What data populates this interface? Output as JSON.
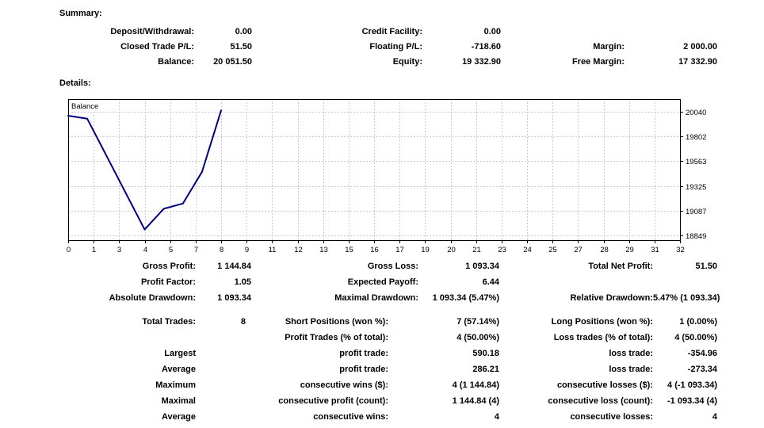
{
  "summary": {
    "title": "Summary:",
    "rows": [
      [
        "Deposit/Withdrawal:",
        "0.00",
        "Credit Facility:",
        "0.00",
        "",
        ""
      ],
      [
        "Closed Trade P/L:",
        "51.50",
        "Floating P/L:",
        "-718.60",
        "Margin:",
        "2 000.00"
      ],
      [
        "Balance:",
        "20 051.50",
        "Equity:",
        "19 332.90",
        "Free Margin:",
        "17 332.90"
      ]
    ]
  },
  "details": {
    "title": "Details:",
    "stats_rows": [
      [
        "Gross Profit:",
        "1 144.84",
        "Gross Loss:",
        "1 093.34",
        "Total Net Profit:",
        "51.50"
      ],
      [
        "Profit Factor:",
        "1.05",
        "Expected Payoff:",
        "6.44",
        "",
        ""
      ],
      [
        "Absolute Drawdown:",
        "1 093.34",
        "Maximal Drawdown:",
        "1 093.34 (5.47%)",
        "Relative Drawdown:",
        "5.47% (1 093.34)"
      ]
    ],
    "trade_rows": [
      [
        "Total Trades:",
        "8",
        "Short Positions (won %):",
        "7 (57.14%)",
        "Long Positions (won %):",
        "1 (0.00%)"
      ],
      [
        "",
        "",
        "Profit Trades (% of total):",
        "4 (50.00%)",
        "Loss trades (% of total):",
        "4 (50.00%)"
      ],
      [
        "Largest",
        "",
        "profit trade:",
        "590.18",
        "loss trade:",
        "-354.96"
      ],
      [
        "Average",
        "",
        "profit trade:",
        "286.21",
        "loss trade:",
        "-273.34"
      ],
      [
        "Maximum",
        "",
        "consecutive wins ($):",
        "4 (1 144.84)",
        "consecutive losses ($):",
        "4 (-1 093.34)"
      ],
      [
        "Maximal",
        "",
        "consecutive profit (count):",
        "1 144.84 (4)",
        "consecutive loss (count):",
        "-1 093.34 (4)"
      ],
      [
        "Average",
        "",
        "consecutive wins:",
        "4",
        "consecutive losses:",
        "4"
      ]
    ]
  },
  "chart_data": {
    "type": "line",
    "title": "Balance",
    "series": [
      {
        "name": "Balance",
        "x": [
          0,
          1,
          2,
          3,
          4,
          5,
          6,
          7,
          8
        ],
        "values": [
          20000.0,
          19971.54,
          19616.58,
          19261.62,
          18906.66,
          19106.66,
          19156.66,
          19461.32,
          20051.5
        ]
      }
    ],
    "x_range": [
      0,
      32
    ],
    "y_range": [
      18805,
      20160
    ],
    "x_tick_labels": [
      "0",
      "1",
      "3",
      "4",
      "5",
      "7",
      "8",
      "9",
      "11",
      "12",
      "13",
      "15",
      "16",
      "17",
      "19",
      "20",
      "21",
      "23",
      "24",
      "25",
      "27",
      "28",
      "29",
      "31",
      "32"
    ],
    "y_ticks": [
      18849,
      19087,
      19325,
      19563,
      19802,
      20040
    ],
    "line_color": "#000080",
    "grid": true,
    "grid_style": "dashed",
    "legend_position": "top-left"
  }
}
